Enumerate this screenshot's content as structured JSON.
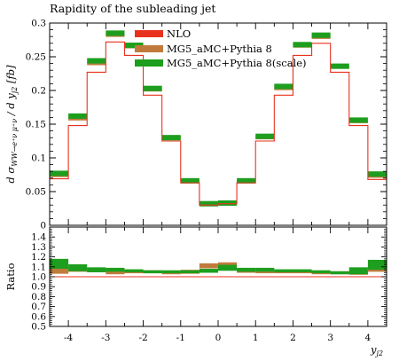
{
  "chart_data": [
    {
      "type": "line",
      "title": "Rapidity of the subleading jet",
      "ylabel": "d σ_{WW→e+νμ+ν} / d y_{j2} [fb]",
      "xlabel": "",
      "xlim": [
        -4.5,
        4.5
      ],
      "ylim": [
        0,
        0.3
      ],
      "yticks": [
        "0",
        "0.05",
        "0.1",
        "0.15",
        "0.2",
        "0.25",
        "0.3"
      ],
      "bin_edges": [
        -4.5,
        -4,
        -3.5,
        -3,
        -2.5,
        -2,
        -1.5,
        -1,
        -0.5,
        0,
        0.5,
        1,
        1.5,
        2,
        2.5,
        3,
        3.5,
        4,
        4.5
      ],
      "legend_position": "top-right",
      "series": [
        {
          "name": "NLO",
          "color": "#e8321e",
          "style": "line",
          "values": [
            0.069,
            0.148,
            0.227,
            0.272,
            0.252,
            0.193,
            0.125,
            0.063,
            0.03,
            0.032,
            0.063,
            0.125,
            0.193,
            0.252,
            0.27,
            0.227,
            0.148,
            0.068
          ]
        },
        {
          "name": "MG5_aMC+Pythia 8",
          "color": "#c07b3c",
          "style": "band",
          "values": [
            0.074,
            0.158,
            0.24,
            0.282,
            0.265,
            0.201,
            0.129,
            0.065,
            0.032,
            0.033,
            0.065,
            0.13,
            0.203,
            0.266,
            0.279,
            0.235,
            0.154,
            0.073
          ],
          "half_width": 0.0025
        },
        {
          "name": "MG5_aMC+Pythia 8(scale)",
          "color": "#1e9e1e",
          "style": "band",
          "values": [
            0.077,
            0.162,
            0.244,
            0.285,
            0.267,
            0.203,
            0.13,
            0.066,
            0.032,
            0.033,
            0.066,
            0.132,
            0.206,
            0.268,
            0.282,
            0.236,
            0.156,
            0.076
          ],
          "half_width": 0.004
        }
      ]
    },
    {
      "type": "line",
      "ylabel": "Ratio",
      "xlabel": "y_{j2}",
      "xlim": [
        -4.5,
        4.5
      ],
      "ylim": [
        0.5,
        1.5
      ],
      "yticks": [
        "0.5",
        "0.6",
        "0.7",
        "0.8",
        "0.9",
        "1.0",
        "1.1",
        "1.2",
        "1.3",
        "1.4"
      ],
      "xticks": [
        "-4",
        "-3",
        "-2",
        "-1",
        "0",
        "1",
        "2",
        "3",
        "4"
      ],
      "bin_edges": [
        -4.5,
        -4,
        -3.5,
        -3,
        -2.5,
        -2,
        -1.5,
        -1,
        -0.5,
        0,
        0.5,
        1,
        1.5,
        2,
        2.5,
        3,
        3.5,
        4,
        4.5
      ],
      "series": [
        {
          "name": "NLO",
          "color": "#e8321e",
          "style": "line",
          "values": [
            1.0,
            1.0,
            1.0,
            1.0,
            1.0,
            1.0,
            1.0,
            1.0,
            1.0,
            1.0,
            1.0,
            1.0,
            1.0,
            1.0,
            1.0,
            1.0,
            1.0,
            1.0
          ]
        },
        {
          "name": "MG5_aMC+Pythia 8",
          "color": "#c07b3c",
          "style": "band",
          "values": [
            1.06,
            1.07,
            1.06,
            1.04,
            1.05,
            1.05,
            1.04,
            1.05,
            1.11,
            1.12,
            1.06,
            1.05,
            1.05,
            1.05,
            1.04,
            1.04,
            1.04,
            1.08
          ],
          "half_width": [
            0.03,
            0.02,
            0.015,
            0.015,
            0.015,
            0.015,
            0.015,
            0.02,
            0.025,
            0.025,
            0.02,
            0.015,
            0.015,
            0.015,
            0.015,
            0.015,
            0.02,
            0.03
          ]
        },
        {
          "name": "MG5_aMC+Pythia 8(scale)",
          "color": "#1e9e1e",
          "style": "band",
          "values": [
            1.13,
            1.09,
            1.07,
            1.07,
            1.06,
            1.05,
            1.05,
            1.05,
            1.06,
            1.09,
            1.07,
            1.07,
            1.06,
            1.06,
            1.05,
            1.04,
            1.06,
            1.12
          ],
          "half_width": [
            0.05,
            0.035,
            0.025,
            0.02,
            0.015,
            0.015,
            0.015,
            0.015,
            0.02,
            0.03,
            0.02,
            0.02,
            0.015,
            0.015,
            0.015,
            0.015,
            0.035,
            0.05
          ]
        }
      ]
    }
  ]
}
